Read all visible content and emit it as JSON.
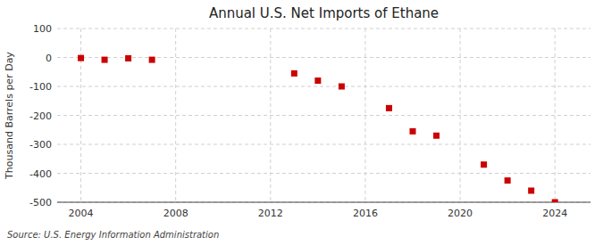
{
  "chart_data": {
    "type": "scatter",
    "title": "Annual U.S. Net Imports of Ethane",
    "ylabel": "Thousand Barrels per Day",
    "source": "Source: U.S. Energy Information Administration",
    "x": [
      2004,
      2005,
      2006,
      2007,
      2013,
      2014,
      2015,
      2017,
      2018,
      2019,
      2021,
      2022,
      2023,
      2024
    ],
    "values": [
      -2,
      -8,
      -3,
      -8,
      -55,
      -80,
      -100,
      -175,
      -255,
      -270,
      -370,
      -425,
      -460,
      -500
    ],
    "color": "#CC0000",
    "marker": "square",
    "xlim": [
      2003.0,
      2025.5
    ],
    "ylim": [
      -500,
      100
    ],
    "xticks": [
      2004,
      2008,
      2012,
      2016,
      2020,
      2024
    ],
    "yticks": [
      100,
      0,
      -100,
      -200,
      -300,
      -400,
      -500
    ],
    "grid": true
  }
}
